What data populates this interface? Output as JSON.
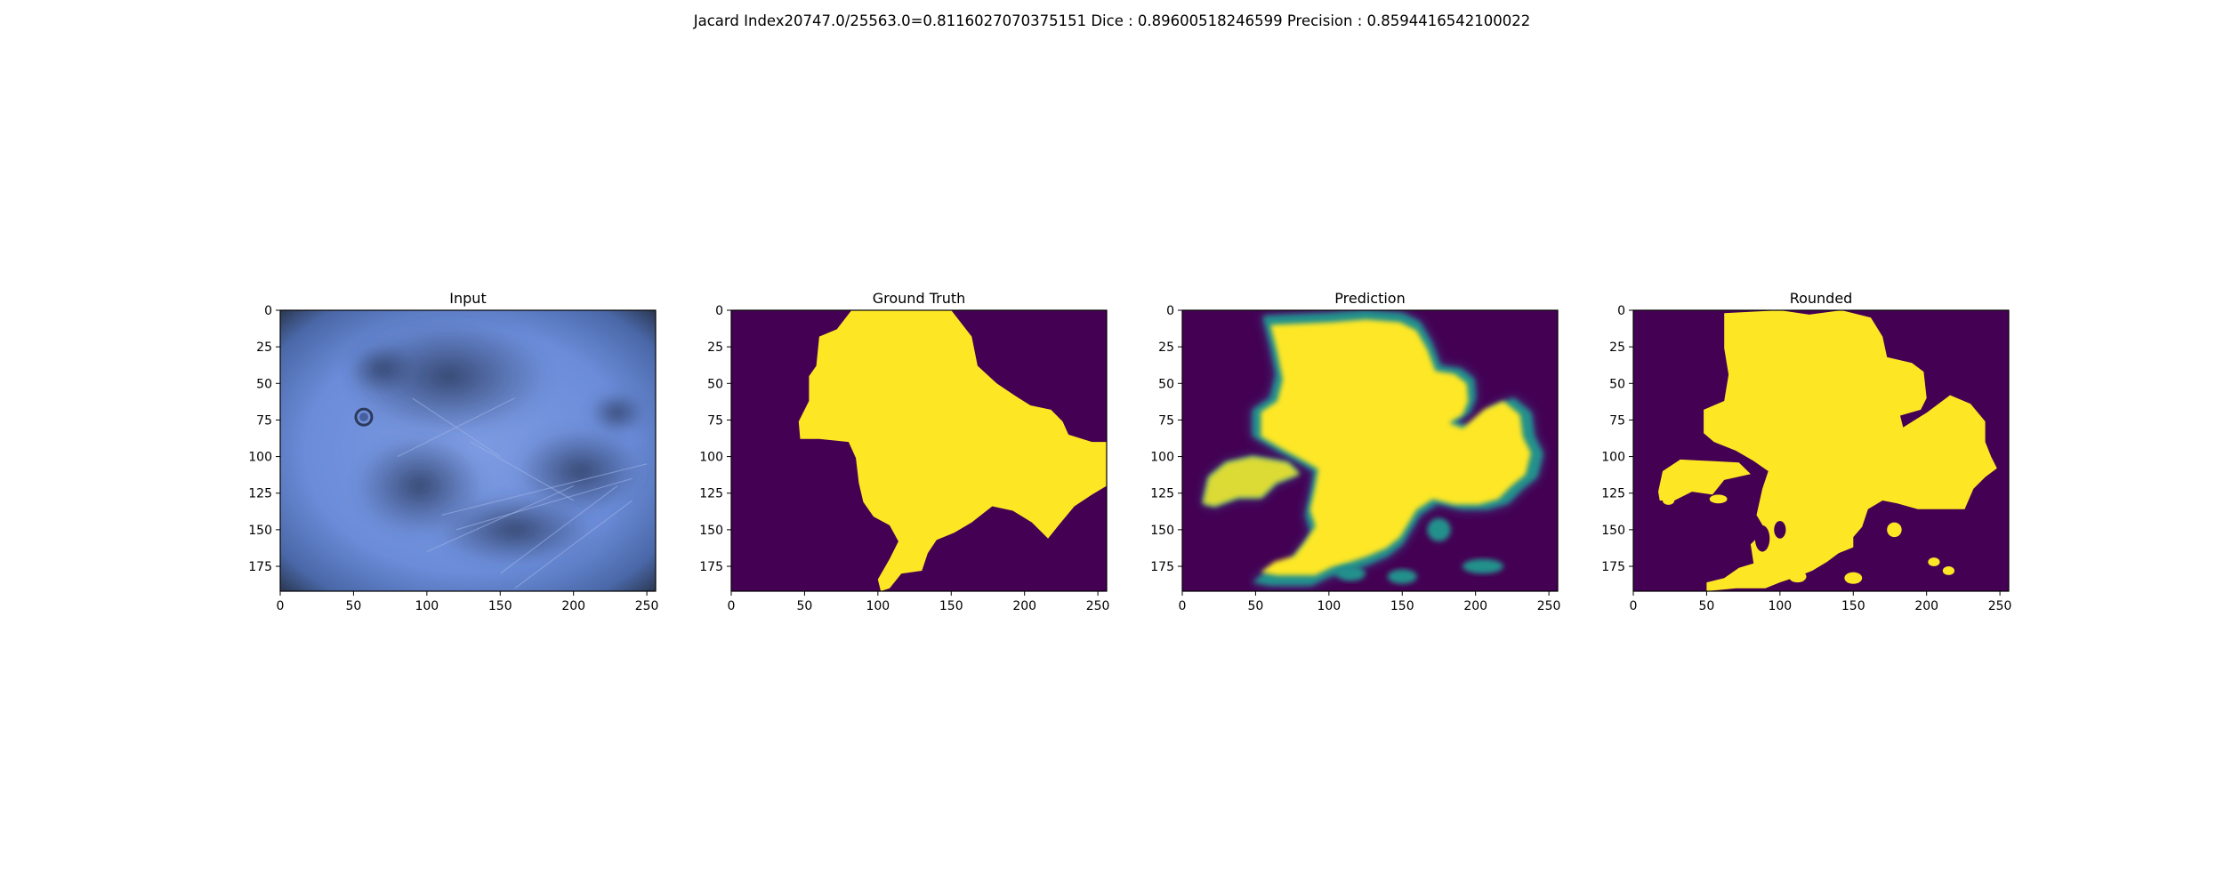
{
  "figure": {
    "suptitle": "Jacard Index20747.0/25563.0=0.8116027070375151 Dice : 0.89600518246599 Precision : 0.8594416542100022"
  },
  "chart_data": [
    {
      "type": "heatmap",
      "title": "Input",
      "content": "image",
      "x_ticks": [
        0,
        50,
        100,
        150,
        200,
        250
      ],
      "y_ticks": [
        0,
        25,
        50,
        75,
        100,
        125,
        150,
        175
      ],
      "xlim": [
        0,
        256
      ],
      "ylim": [
        192,
        0
      ],
      "colors": {
        "base": "#6d8fdc",
        "dark_region": "#3a507f",
        "vignette": "#2a3142",
        "highlight": "#9fb4e8"
      }
    },
    {
      "type": "heatmap",
      "title": "Ground Truth",
      "content": "mask",
      "x_ticks": [
        0,
        50,
        100,
        150,
        200,
        250
      ],
      "y_ticks": [
        0,
        25,
        50,
        75,
        100,
        125,
        150,
        175
      ],
      "xlim": [
        0,
        256
      ],
      "ylim": [
        192,
        0
      ],
      "colors": {
        "background": "#440154",
        "foreground": "#fde725"
      }
    },
    {
      "type": "heatmap",
      "title": "Prediction",
      "content": "soft-mask",
      "x_ticks": [
        0,
        50,
        100,
        150,
        200,
        250
      ],
      "y_ticks": [
        0,
        25,
        50,
        75,
        100,
        125,
        150,
        175
      ],
      "xlim": [
        0,
        256
      ],
      "ylim": [
        192,
        0
      ],
      "colors": {
        "background": "#440154",
        "foreground": "#fde725",
        "edge": "#21918c",
        "mid": "#3b528b"
      }
    },
    {
      "type": "heatmap",
      "title": "Rounded",
      "content": "mask",
      "x_ticks": [
        0,
        50,
        100,
        150,
        200,
        250
      ],
      "y_ticks": [
        0,
        25,
        50,
        75,
        100,
        125,
        150,
        175
      ],
      "xlim": [
        0,
        256
      ],
      "ylim": [
        192,
        0
      ],
      "colors": {
        "background": "#440154",
        "foreground": "#fde725"
      }
    }
  ]
}
